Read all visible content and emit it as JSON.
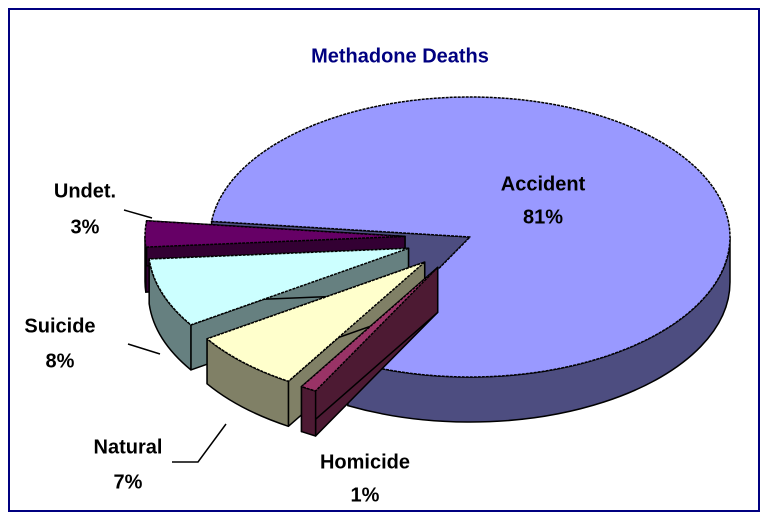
{
  "chart_data": {
    "type": "pie3d",
    "title": "Methadone Deaths",
    "categories": [
      "Accident",
      "Homicide",
      "Natural",
      "Suicide",
      "Undet."
    ],
    "values": [
      81,
      1,
      7,
      8,
      3
    ],
    "value_labels": [
      "81%",
      "1%",
      "7%",
      "8%",
      "3%"
    ],
    "colors": [
      "#9999ff",
      "#993366",
      "#ffffcc",
      "#ccffff",
      "#660066"
    ],
    "exploded": [
      false,
      true,
      true,
      true,
      true
    ]
  }
}
